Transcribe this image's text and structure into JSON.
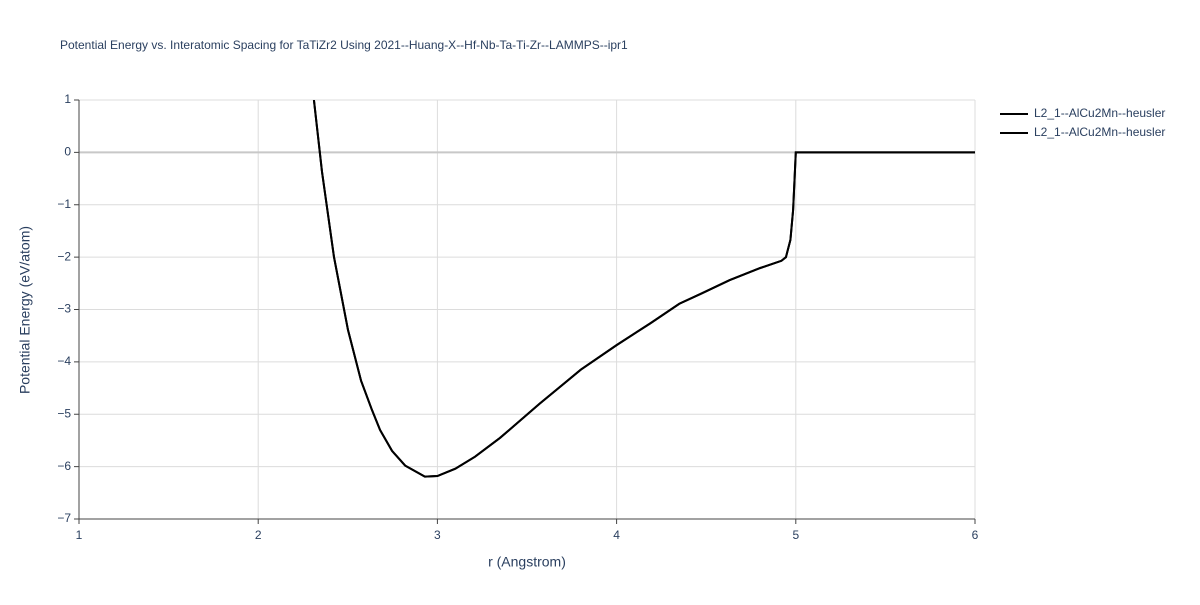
{
  "chart_data": {
    "type": "line",
    "title": "Potential Energy vs. Interatomic Spacing for TaTiZr2 Using 2021--Huang-X--Hf-Nb-Ta-Ti-Zr--LAMMPS--ipr1",
    "x_label": "r (Angstrom)",
    "y_label": "Potential Energy (eV/atom)",
    "x": [
      2.311,
      2.356,
      2.423,
      2.501,
      2.574,
      2.635,
      2.68,
      2.747,
      2.82,
      2.93,
      3.0,
      3.1,
      3.21,
      3.35,
      3.57,
      3.8,
      4.0,
      4.19,
      4.35,
      4.47,
      4.63,
      4.8,
      4.92,
      4.945,
      4.97,
      4.985,
      5.0,
      5.5,
      6.0
    ],
    "series": [
      {
        "name": "L2_1--AlCu2Mn--heusler",
        "color": "#000000",
        "values": [
          1.0,
          -0.37,
          -2.0,
          -3.39,
          -4.36,
          -4.92,
          -5.3,
          -5.7,
          -5.98,
          -6.19,
          -6.18,
          -6.04,
          -5.81,
          -5.45,
          -4.8,
          -4.15,
          -3.68,
          -3.26,
          -2.89,
          -2.7,
          -2.44,
          -2.21,
          -2.07,
          -2.0,
          -1.67,
          -1.1,
          0,
          0,
          0
        ]
      },
      {
        "name": "L2_1--AlCu2Mn--heusler",
        "color": "#000000",
        "values": [
          1.0,
          -0.37,
          -2.0,
          -3.39,
          -4.36,
          -4.92,
          -5.3,
          -5.7,
          -5.98,
          -6.19,
          -6.18,
          -6.04,
          -5.81,
          -5.45,
          -4.8,
          -4.15,
          -3.68,
          -3.26,
          -2.89,
          -2.7,
          -2.44,
          -2.21,
          -2.07,
          -2.0,
          -1.67,
          -1.1,
          0,
          0,
          0
        ]
      }
    ],
    "xlim": [
      1,
      6
    ],
    "xticks": [
      1,
      2,
      3,
      4,
      5,
      6
    ],
    "ylim": [
      -7,
      1
    ],
    "yticks": [
      {
        "value": -7,
        "label": "−7"
      },
      {
        "value": -6,
        "label": "−6"
      },
      {
        "value": -5,
        "label": "−5"
      },
      {
        "value": -4,
        "label": "−4"
      },
      {
        "value": -3,
        "label": "−3"
      },
      {
        "value": -2,
        "label": "−2"
      },
      {
        "value": -1,
        "label": "−1"
      },
      0,
      1
    ],
    "grid": true,
    "legend": "outside-right"
  }
}
